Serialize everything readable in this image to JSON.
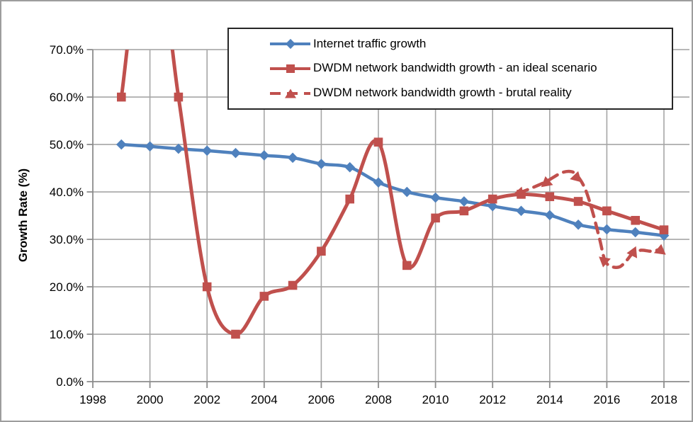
{
  "window": {
    "background": "#ffffff",
    "border_color": "#9d9d9d"
  },
  "axes": {
    "y_title": "Growth Rate (%)"
  },
  "chart_data": {
    "type": "line",
    "title": "",
    "xlabel": "",
    "ylabel": "Growth Rate (%)",
    "ylim": [
      0,
      70
    ],
    "xlim": [
      1998,
      2018.9
    ],
    "grid": true,
    "legend_position": "top-right-inside",
    "colors": {
      "blue": "#4F81BD",
      "red": "#C0504D",
      "gridline": "#A6A6A6",
      "axis": "#8C8C8C"
    },
    "y_ticks": [
      {
        "value": 0,
        "label": "0.0%"
      },
      {
        "value": 10,
        "label": "10.0%"
      },
      {
        "value": 20,
        "label": "20.0%"
      },
      {
        "value": 30,
        "label": "30.0%"
      },
      {
        "value": 40,
        "label": "40.0%"
      },
      {
        "value": 50,
        "label": "50.0%"
      },
      {
        "value": 60,
        "label": "60.0%"
      },
      {
        "value": 70,
        "label": "70.0%"
      }
    ],
    "x_ticks": [
      {
        "value": 1998,
        "label": "1998"
      },
      {
        "value": 2000,
        "label": "2000"
      },
      {
        "value": 2002,
        "label": "2002"
      },
      {
        "value": 2004,
        "label": "2004"
      },
      {
        "value": 2006,
        "label": "2006"
      },
      {
        "value": 2008,
        "label": "2008"
      },
      {
        "value": 2010,
        "label": "2010"
      },
      {
        "value": 2012,
        "label": "2012"
      },
      {
        "value": 2014,
        "label": "2014"
      },
      {
        "value": 2016,
        "label": "2016"
      },
      {
        "value": 2018,
        "label": "2018"
      }
    ],
    "series": [
      {
        "name": "Internet traffic growth",
        "color": "#4F81BD",
        "marker": "diamond",
        "line_style": "solid",
        "line_width": 4.5,
        "x": [
          1999,
          2000,
          2001,
          2002,
          2003,
          2004,
          2005,
          2006,
          2007,
          2008,
          2009,
          2010,
          2011,
          2012,
          2013,
          2014,
          2015,
          2016,
          2017,
          2018
        ],
        "values": [
          50.0,
          49.6,
          49.1,
          48.7,
          48.2,
          47.7,
          47.2,
          45.9,
          45.2,
          42.0,
          40.0,
          38.8,
          38.0,
          37.0,
          36.0,
          35.1,
          33.1,
          32.1,
          31.5,
          30.8
        ]
      },
      {
        "name": "DWDM network bandwidth growth - an ideal scenario",
        "color": "#C0504D",
        "marker": "square",
        "line_style": "solid",
        "line_width": 5,
        "x": [
          1999,
          2000,
          2001,
          2002,
          2003,
          2004,
          2005,
          2006,
          2007,
          2008,
          2009,
          2010,
          2011,
          2012,
          2013,
          2014,
          2015,
          2016,
          2017,
          2018
        ],
        "values": [
          60,
          100,
          60,
          20,
          10,
          18,
          20.3,
          27.5,
          38.5,
          50.5,
          24.5,
          34.5,
          36,
          38.5,
          39.5,
          39,
          38,
          36,
          34,
          32
        ],
        "note": "2000 value exceeds the 70% axis maximum; line is clipped at top of plot"
      },
      {
        "name": "DWDM network bandwidth growth - brutal reality",
        "color": "#C0504D",
        "marker": "triangle",
        "line_style": "dashed",
        "line_width": 4.5,
        "x": [
          2013,
          2014,
          2015,
          2016,
          2017,
          2018
        ],
        "values": [
          39.5,
          42,
          43,
          25,
          27,
          28
        ],
        "marker_points": [
          [
            2012.9,
            39.7
          ],
          [
            2013.88,
            42.2
          ],
          [
            2014.95,
            43.3
          ],
          [
            2015.9,
            25.2
          ],
          [
            2016.88,
            27.2
          ],
          [
            2017.88,
            27.9
          ]
        ],
        "marker_angles": [
          -100,
          -10,
          15,
          190,
          -95,
          8
        ],
        "curve": [
          [
            2012.9,
            39.7
          ],
          [
            2013.4,
            40.9
          ],
          [
            2013.88,
            42.2
          ],
          [
            2014.4,
            44.0
          ],
          [
            2014.75,
            44.3
          ],
          [
            2014.98,
            43.3
          ],
          [
            2015.25,
            40.5
          ],
          [
            2015.5,
            35.8
          ],
          [
            2015.75,
            30.0
          ],
          [
            2015.93,
            25.6
          ],
          [
            2016.15,
            24.3
          ],
          [
            2016.45,
            24.2
          ],
          [
            2016.7,
            25.6
          ],
          [
            2016.9,
            27.0
          ],
          [
            2017.2,
            27.7
          ],
          [
            2017.55,
            27.5
          ],
          [
            2017.88,
            27.9
          ]
        ]
      }
    ]
  }
}
